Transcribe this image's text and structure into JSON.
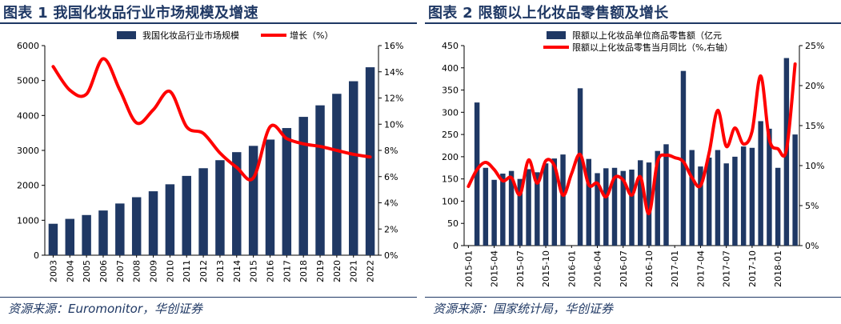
{
  "charts": [
    {
      "title": "图表 1 我国化妆品行业市场规模及增速",
      "source": "资源来源：Euromonitor，华创证券"
    },
    {
      "title": "图表 2 限额以上化妆品零售额及增长",
      "source": "资源来源：国家统计局，华创证券"
    }
  ],
  "chart_data": [
    {
      "type": "bar",
      "categories": [
        "2003",
        "2004",
        "2005",
        "2006",
        "2007",
        "2008",
        "2009",
        "2010",
        "2011",
        "2012",
        "2013",
        "2014",
        "2015",
        "2016",
        "2017",
        "2018",
        "2019",
        "2020",
        "2021",
        "2022"
      ],
      "series": [
        {
          "name": "我国化妆品行业市场规模",
          "type": "bar",
          "axis": "left",
          "color": "#1f3864",
          "values": [
            900,
            1040,
            1150,
            1280,
            1480,
            1660,
            1830,
            2030,
            2270,
            2490,
            2720,
            2950,
            3130,
            3310,
            3640,
            3960,
            4290,
            4620,
            4980,
            5380
          ]
        },
        {
          "name": "增长（%）",
          "type": "line",
          "axis": "right",
          "color": "#ff0000",
          "values": [
            14.4,
            12.6,
            12.3,
            15.0,
            12.6,
            10.1,
            11.1,
            12.5,
            9.8,
            9.3,
            7.8,
            6.7,
            5.9,
            9.8,
            8.9,
            8.5,
            8.3,
            8.0,
            7.7,
            7.5
          ]
        }
      ],
      "ylim_left": [
        0,
        6000
      ],
      "yticks_left": [
        "0",
        "1000",
        "2000",
        "3000",
        "4000",
        "5000",
        "6000"
      ],
      "ylim_right": [
        0,
        16
      ],
      "yticks_right": [
        "0%",
        "2%",
        "4%",
        "6%",
        "8%",
        "10%",
        "12%",
        "14%",
        "16%"
      ],
      "legend": "top-center"
    },
    {
      "type": "bar",
      "categories": [
        "2015-01",
        "2015-02",
        "2015-03",
        "2015-04",
        "2015-05",
        "2015-06",
        "2015-07",
        "2015-08",
        "2015-09",
        "2015-10",
        "2015-11",
        "2015-12",
        "2016-01",
        "2016-02",
        "2016-03",
        "2016-04",
        "2016-05",
        "2016-06",
        "2016-07",
        "2016-08",
        "2016-09",
        "2016-10",
        "2016-11",
        "2016-12",
        "2017-01",
        "2017-02",
        "2017-03",
        "2017-04",
        "2017-05",
        "2017-06",
        "2017-07",
        "2017-08",
        "2017-09",
        "2017-10",
        "2017-11",
        "2017-12",
        "2018-01",
        "2018-02",
        "2018-03"
      ],
      "x_tick_labels": [
        "2015-01",
        "2015-04",
        "2015-07",
        "2015-10",
        "2016-01",
        "2016-04",
        "2016-07",
        "2016-10",
        "2017-01",
        "2017-04",
        "2017-07",
        "2017-10",
        "2018-01"
      ],
      "series": [
        {
          "name": "限额以上化妆品单位商品零售额（亿元",
          "type": "bar",
          "axis": "left",
          "color": "#1f3864",
          "values": [
            null,
            322,
            175,
            148,
            162,
            168,
            150,
            172,
            165,
            185,
            196,
            205,
            null,
            354,
            195,
            163,
            174,
            175,
            168,
            171,
            192,
            187,
            213,
            228,
            null,
            393,
            215,
            178,
            198,
            215,
            185,
            200,
            223,
            220,
            280,
            263,
            175,
            422,
            250
          ]
        },
        {
          "name": "限额以上化妆品零售当月同比（%,右轴）",
          "type": "line",
          "axis": "right",
          "color": "#ff0000",
          "values": [
            7.4,
            9.5,
            10.4,
            9.5,
            8.1,
            8.5,
            6.4,
            10.7,
            7.8,
            10.6,
            10.0,
            6.3,
            9.0,
            11.4,
            7.6,
            7.8,
            6.1,
            8.5,
            8.2,
            6.3,
            8.6,
            4.0,
            10.5,
            11.3,
            11.0,
            10.5,
            8.5,
            7.5,
            11.6,
            16.9,
            12.4,
            14.7,
            12.7,
            14.3,
            21.2,
            13.3,
            12.1,
            12.0,
            22.7
          ]
        }
      ],
      "ylim_left": [
        0,
        450
      ],
      "yticks_left": [
        "0",
        "50",
        "100",
        "150",
        "200",
        "250",
        "300",
        "350",
        "400",
        "450"
      ],
      "ylim_right": [
        0,
        25
      ],
      "yticks_right": [
        "0%",
        "5%",
        "10%",
        "15%",
        "20%",
        "25%"
      ],
      "legend": "top-center"
    }
  ]
}
